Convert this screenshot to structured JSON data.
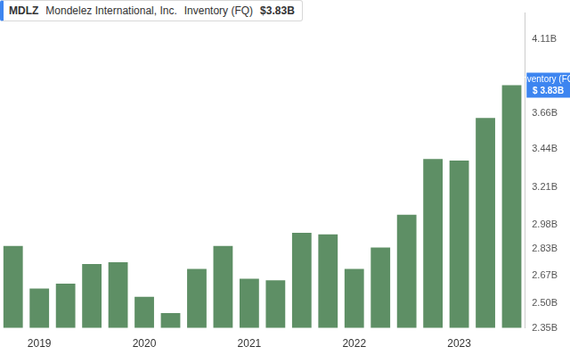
{
  "chart_data": {
    "type": "bar",
    "title": "MDLZ",
    "subtitle": "Mondelez International, Inc.",
    "categories": [
      null,
      "2019",
      null,
      null,
      null,
      "2020",
      null,
      null,
      null,
      "2021",
      null,
      null,
      null,
      "2022",
      null,
      null,
      null,
      "2023",
      null,
      null
    ],
    "series": [
      {
        "name": "Inventory (FQ)",
        "color": "#5e8f65",
        "values": [
          2.85,
          2.59,
          2.62,
          2.74,
          2.75,
          2.54,
          2.44,
          2.71,
          2.85,
          2.65,
          2.64,
          2.93,
          2.92,
          2.71,
          2.84,
          3.04,
          3.38,
          3.37,
          3.63,
          3.83
        ]
      }
    ],
    "annotations": [
      {
        "text": "$3.83B"
      },
      {
        "text": "Inventory (FQ)"
      },
      {
        "text": "$ 3.83B"
      }
    ],
    "ylim": [
      2.35,
      4.27
    ],
    "yticks": [
      {
        "value": 2.35,
        "label": "2.35B"
      },
      {
        "value": 2.5,
        "label": "2.50B"
      },
      {
        "value": 2.67,
        "label": "2.67B"
      },
      {
        "value": 2.83,
        "label": "2.83B"
      },
      {
        "value": 2.98,
        "label": "2.98B"
      },
      {
        "value": 3.21,
        "label": "3.21B"
      },
      {
        "value": 3.44,
        "label": "3.44B"
      },
      {
        "value": 3.66,
        "label": "3.66B"
      },
      {
        "value": 4.11,
        "label": "4.11B"
      }
    ],
    "grid": false
  }
}
